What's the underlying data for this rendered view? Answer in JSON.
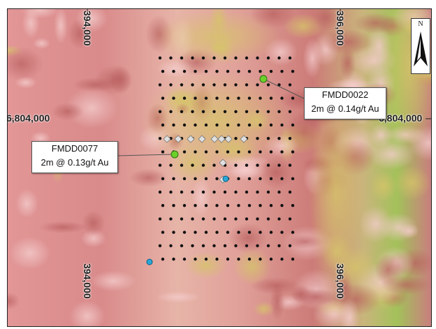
{
  "map": {
    "grid": {
      "easting_left": "394,000",
      "easting_right": "396,000",
      "northing": "6,804,000"
    },
    "north_arrow": {
      "label": "N",
      "icon": "north-arrow-icon"
    },
    "callouts": [
      {
        "id": "FMDD0022",
        "hole": "FMDD0022",
        "result": "2m @ 0.14g/t Au"
      },
      {
        "id": "FMDD0077",
        "hole": "FMDD0077",
        "result": "2m @ 0.13g/t Au"
      }
    ],
    "colors": {
      "background_low": "#e9a2a2",
      "background_high": "#b9b64a",
      "green_zone": "#8fc24a",
      "highlight_hole": "#6ad12a",
      "cyan_hole": "#2aa6d8",
      "drill_dot": "#111111",
      "diamond_fill": "#e0e0e0"
    },
    "symbols": [
      "black-dot",
      "white-diamond",
      "cyan-dot",
      "green-dot"
    ]
  }
}
